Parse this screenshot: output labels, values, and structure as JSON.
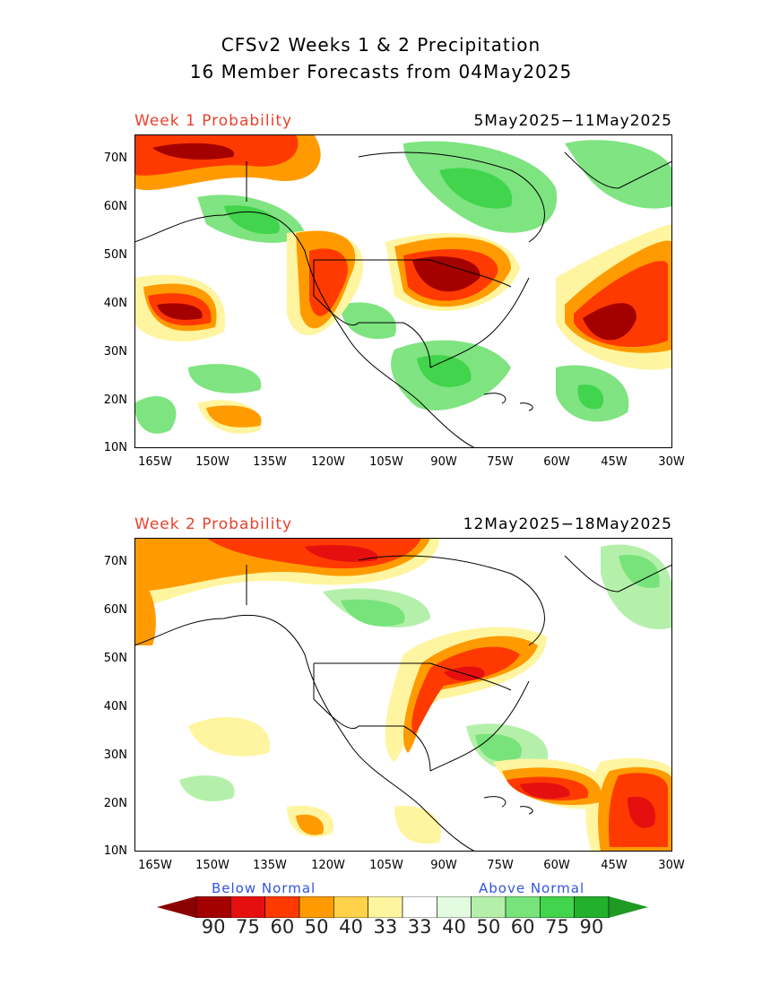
{
  "title_line1": "CFSv2 Weeks 1 & 2 Precipitation",
  "title_line2": "16 Member Forecasts from 04May2025",
  "panels": [
    {
      "label": "Week 1 Probability",
      "dates": "5May2025−11May2025"
    },
    {
      "label": "Week 2 Probability",
      "dates": "12May2025−18May2025"
    }
  ],
  "lat_labels": [
    "70N",
    "60N",
    "50N",
    "40N",
    "30N",
    "20N",
    "10N"
  ],
  "lon_labels": [
    "165W",
    "150W",
    "135W",
    "120W",
    "105W",
    "90W",
    "75W",
    "60W",
    "45W",
    "30W"
  ],
  "legend": {
    "below_label": "Below Normal",
    "above_label": "Above Normal",
    "values": [
      "90",
      "75",
      "60",
      "50",
      "40",
      "33",
      "33",
      "40",
      "50",
      "60",
      "75",
      "90"
    ],
    "colors": [
      "#a50000",
      "#e60f0f",
      "#ff3a00",
      "#ff9b00",
      "#ffd24a",
      "#fff5a0",
      "#ffffff",
      "#e3fbe0",
      "#b4f0aa",
      "#78e37a",
      "#41d44c",
      "#22b02d"
    ],
    "arrow_left_color": "#8b0000",
    "arrow_right_color": "#1f9a22"
  }
}
